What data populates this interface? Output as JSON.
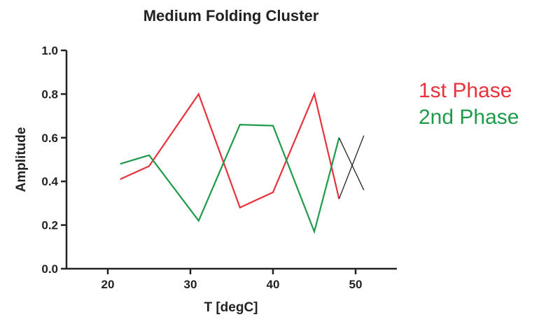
{
  "chart_data": {
    "type": "line",
    "title": "Medium Folding Cluster",
    "xlabel": "T [degC]",
    "ylabel": "Amplitude",
    "xlim": [
      15,
      55
    ],
    "ylim": [
      0,
      1.0
    ],
    "x_ticks": [
      20,
      30,
      40,
      50
    ],
    "x_tick_labels": [
      "20",
      "30",
      "40",
      "50"
    ],
    "y_ticks": [
      0,
      0.2,
      0.4,
      0.6,
      0.8,
      1.0
    ],
    "y_tick_labels": [
      "0.0",
      "0.2",
      "0.4",
      "0.6",
      "0.8",
      "1.0"
    ],
    "grid": false,
    "legend_position": "right",
    "series": [
      {
        "name": "1st Phase",
        "color": "#e8323c",
        "points": [
          [
            21.5,
            0.41
          ],
          [
            25,
            0.47
          ],
          [
            31,
            0.8
          ],
          [
            36,
            0.28
          ],
          [
            40,
            0.35
          ],
          [
            45,
            0.8
          ],
          [
            48,
            0.32
          ]
        ]
      },
      {
        "name": "2nd Phase",
        "color": "#1f9a4a",
        "points": [
          [
            21.5,
            0.48
          ],
          [
            25,
            0.52
          ],
          [
            31,
            0.22
          ],
          [
            36,
            0.66
          ],
          [
            40,
            0.655
          ],
          [
            45,
            0.17
          ],
          [
            48,
            0.6
          ]
        ]
      },
      {
        "name": "",
        "color": "#222222",
        "points": [
          [
            48,
            0.32
          ],
          [
            51,
            0.61
          ]
        ]
      },
      {
        "name": "",
        "color": "#222222",
        "points": [
          [
            48,
            0.6
          ],
          [
            51,
            0.36
          ]
        ]
      }
    ]
  }
}
